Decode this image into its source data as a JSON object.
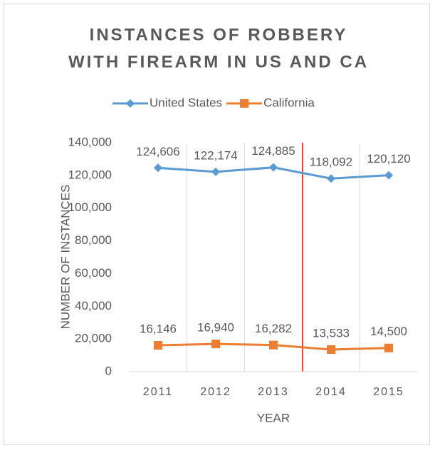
{
  "chart_data": {
    "type": "line",
    "title": [
      "INSTANCES OF ROBBERY",
      "WITH FIREARM IN US AND CA"
    ],
    "x_label": "YEAR",
    "y_label": "NUMBER OF INSTANCES",
    "categories": [
      "2011",
      "2012",
      "2013",
      "2014",
      "2015"
    ],
    "series": [
      {
        "name": "United States",
        "color": "#5b9bd5",
        "marker": "diamond",
        "values": [
          124606,
          122174,
          124885,
          118092,
          120120
        ],
        "value_labels": [
          "124,606",
          "122,174",
          "124,885",
          "118,092",
          "120,120"
        ]
      },
      {
        "name": "California",
        "color": "#ed7d31",
        "marker": "square",
        "values": [
          16146,
          16940,
          16282,
          13533,
          14500
        ],
        "value_labels": [
          "16,146",
          "16,940",
          "16,282",
          "13,533",
          "14,500"
        ]
      }
    ],
    "ylim": [
      0,
      140000
    ],
    "yticks": [
      0,
      {
        "value": 20000,
        "label": "20,000"
      },
      {
        "value": 40000,
        "label": "40,000"
      },
      {
        "value": 60000,
        "label": "60,000"
      },
      {
        "value": 80000,
        "label": "80,000"
      },
      {
        "value": 100000,
        "label": "100,000"
      },
      {
        "value": 120000,
        "label": "120,000"
      },
      {
        "value": 140000,
        "label": "140,000"
      }
    ],
    "legend": "top",
    "grid": "vertical"
  }
}
